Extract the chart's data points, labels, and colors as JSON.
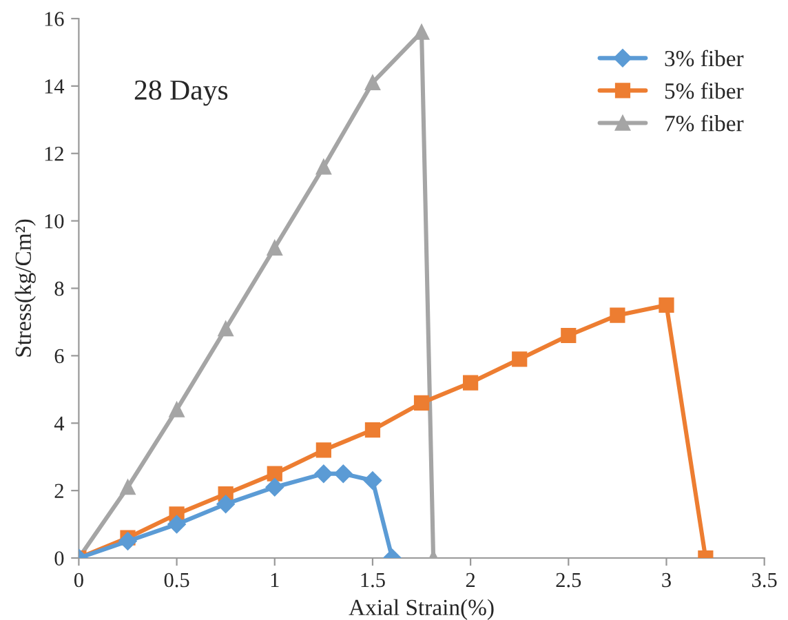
{
  "chart_data": {
    "type": "line",
    "xlabel": "Axial Strain(%)",
    "ylabel": "Stress(kg/Cm²)",
    "annotations": [
      "28 Days"
    ],
    "xlim": [
      0,
      3.5
    ],
    "xticks": [
      0,
      0.5,
      1,
      1.5,
      2,
      2.5,
      3,
      3.5
    ],
    "ylim": [
      0,
      16
    ],
    "yticks": [
      0,
      2,
      4,
      6,
      8,
      10,
      12,
      14,
      16
    ],
    "grid": false,
    "legend": "top right",
    "line_style": "solid",
    "series": [
      {
        "name": "3% fiber",
        "color": "#5b9bd5",
        "marker": "diamond",
        "x": [
          0,
          0.25,
          0.5,
          0.75,
          1,
          1.25,
          1.35,
          1.5,
          1.6
        ],
        "values": [
          0,
          0.5,
          1.0,
          1.6,
          2.1,
          2.5,
          2.5,
          2.3,
          0
        ]
      },
      {
        "name": "5% fiber",
        "color": "#ed7d31",
        "marker": "square",
        "x": [
          0,
          0.25,
          0.5,
          0.75,
          1,
          1.25,
          1.5,
          1.75,
          2,
          2.25,
          2.5,
          2.75,
          3,
          3.2
        ],
        "values": [
          0,
          0.6,
          1.3,
          1.9,
          2.5,
          3.2,
          3.8,
          4.6,
          5.2,
          5.9,
          6.6,
          7.2,
          7.5,
          0
        ]
      },
      {
        "name": "7% fiber",
        "color": "#a5a5a5",
        "marker": "triangle",
        "x": [
          0,
          0.25,
          0.5,
          0.75,
          1,
          1.25,
          1.5,
          1.75,
          1.81
        ],
        "values": [
          0,
          2.1,
          4.4,
          6.8,
          9.2,
          11.6,
          14.1,
          15.6,
          0
        ]
      }
    ]
  }
}
